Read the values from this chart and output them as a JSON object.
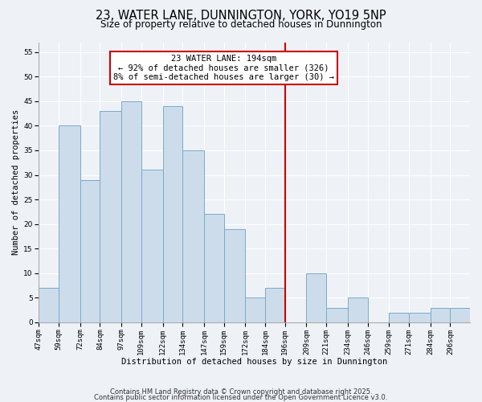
{
  "title": "23, WATER LANE, DUNNINGTON, YORK, YO19 5NP",
  "subtitle": "Size of property relative to detached houses in Dunnington",
  "xlabel": "Distribution of detached houses by size in Dunnington",
  "ylabel": "Number of detached properties",
  "bin_labels": [
    "47sqm",
    "59sqm",
    "72sqm",
    "84sqm",
    "97sqm",
    "109sqm",
    "122sqm",
    "134sqm",
    "147sqm",
    "159sqm",
    "172sqm",
    "184sqm",
    "196sqm",
    "209sqm",
    "221sqm",
    "234sqm",
    "246sqm",
    "259sqm",
    "271sqm",
    "284sqm",
    "296sqm"
  ],
  "bin_edges": [
    47,
    59,
    72,
    84,
    97,
    109,
    122,
    134,
    147,
    159,
    172,
    184,
    196,
    209,
    221,
    234,
    246,
    259,
    271,
    284,
    296,
    308
  ],
  "counts": [
    7,
    40,
    29,
    43,
    45,
    31,
    44,
    35,
    22,
    19,
    5,
    7,
    0,
    10,
    3,
    5,
    0,
    2,
    2,
    3,
    3
  ],
  "bar_color": "#cddceb",
  "bar_edge_color": "#7aaac8",
  "vline_x": 196,
  "vline_color": "#cc0000",
  "annotation_text": "23 WATER LANE: 194sqm\n← 92% of detached houses are smaller (326)\n8% of semi-detached houses are larger (30) →",
  "annotation_box_color": "#ffffff",
  "annotation_box_edge_color": "#cc0000",
  "ylim": [
    0,
    57
  ],
  "yticks": [
    0,
    5,
    10,
    15,
    20,
    25,
    30,
    35,
    40,
    45,
    50,
    55
  ],
  "bg_color": "#eef2f7",
  "footer_line1": "Contains HM Land Registry data © Crown copyright and database right 2025.",
  "footer_line2": "Contains public sector information licensed under the Open Government Licence v3.0.",
  "title_fontsize": 10.5,
  "subtitle_fontsize": 8.5,
  "axis_label_fontsize": 7.5,
  "tick_fontsize": 6.5,
  "annotation_fontsize": 7.5,
  "footer_fontsize": 6.0
}
